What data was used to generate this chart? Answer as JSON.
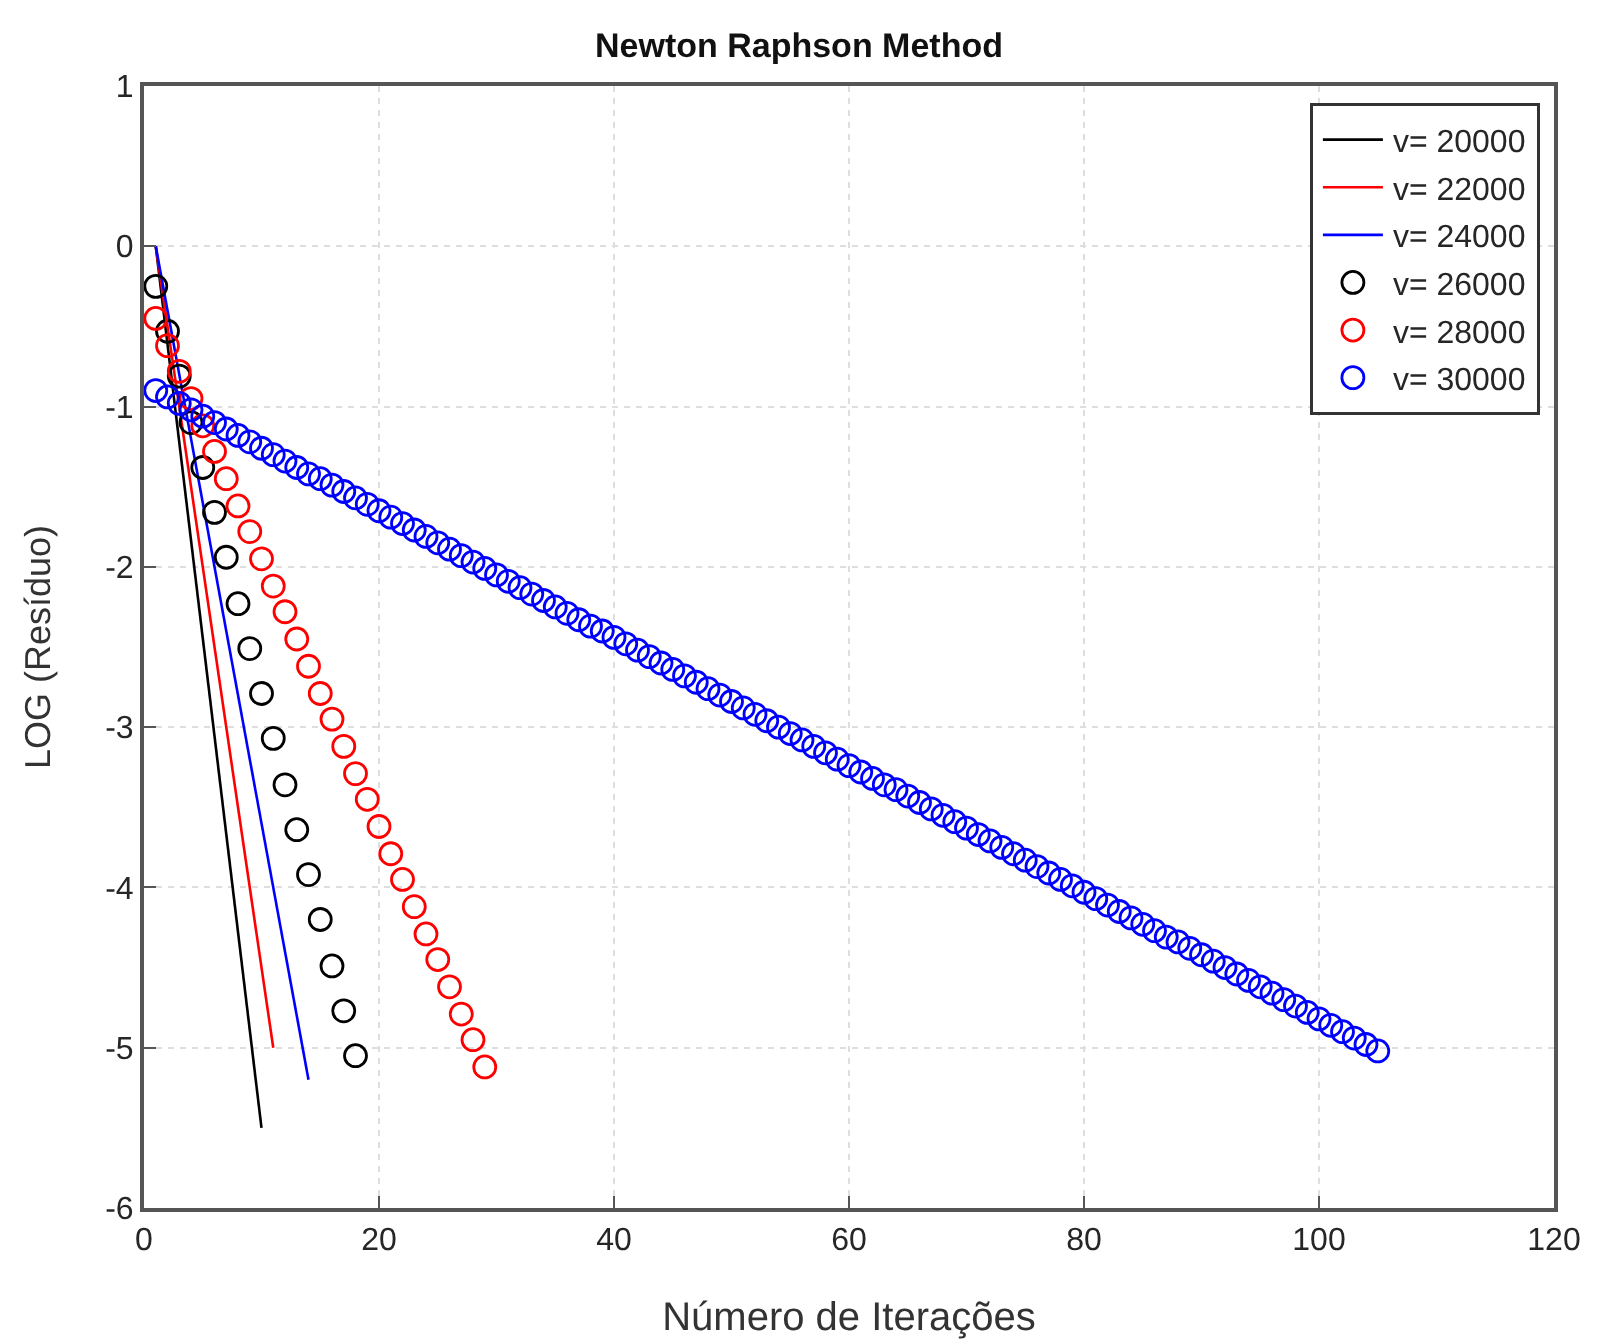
{
  "chart_data": {
    "type": "line",
    "title": "Newton Raphson Method",
    "xlabel": "Número de Iterações",
    "ylabel": "LOG (Resíduo)",
    "xlim": [
      0,
      120
    ],
    "xticks": [
      0,
      20,
      40,
      60,
      80,
      100,
      120
    ],
    "ylim": [
      -6,
      1
    ],
    "yticks": [
      -6,
      -5,
      -4,
      -3,
      -2,
      -1,
      0,
      1
    ],
    "grid": true,
    "legend": "top right",
    "series": [
      {
        "name": "v= 20000",
        "type": "line",
        "marker": "none",
        "color": "#000000",
        "x": [
          1,
          10
        ],
        "values": [
          0,
          -5.5
        ]
      },
      {
        "name": "v= 22000",
        "type": "line",
        "marker": "none",
        "color": "#ff0000",
        "x": [
          1,
          11
        ],
        "values": [
          0,
          -5.0
        ]
      },
      {
        "name": "v= 24000",
        "type": "line",
        "marker": "none",
        "color": "#0000ff",
        "x": [
          1,
          14
        ],
        "values": [
          0,
          -5.2
        ]
      },
      {
        "name": "v= 26000",
        "type": "scatter",
        "marker": "circle",
        "color": "#000000",
        "x": [
          1,
          2,
          3,
          4,
          5,
          6,
          7,
          8,
          9,
          10,
          11,
          12,
          13,
          14,
          15,
          16,
          17,
          18
        ],
        "values": [
          -0.25,
          -0.53,
          -0.81,
          -1.1,
          -1.38,
          -1.66,
          -1.94,
          -2.23,
          -2.51,
          -2.79,
          -3.07,
          -3.36,
          -3.64,
          -3.92,
          -4.2,
          -4.49,
          -4.77,
          -5.05
        ]
      },
      {
        "name": "v= 28000",
        "type": "scatter",
        "marker": "circle",
        "color": "#ff0000",
        "x": [
          1,
          2,
          3,
          4,
          5,
          6,
          7,
          8,
          9,
          10,
          11,
          12,
          13,
          14,
          15,
          16,
          17,
          18,
          19,
          20,
          21,
          22,
          23,
          24,
          25,
          26,
          27,
          28,
          29
        ],
        "values": [
          -0.45,
          -0.62,
          -0.78,
          -0.95,
          -1.12,
          -1.28,
          -1.45,
          -1.62,
          -1.78,
          -1.95,
          -2.12,
          -2.28,
          -2.45,
          -2.62,
          -2.79,
          -2.95,
          -3.12,
          -3.29,
          -3.45,
          -3.62,
          -3.79,
          -3.95,
          -4.12,
          -4.29,
          -4.45,
          -4.62,
          -4.79,
          -4.95,
          -5.12
        ]
      },
      {
        "name": "v= 30000",
        "type": "scatter",
        "marker": "circle",
        "color": "#0000ff",
        "x": [
          1,
          2,
          3,
          4,
          5,
          6,
          7,
          8,
          9,
          10,
          11,
          12,
          13,
          14,
          15,
          16,
          17,
          18,
          19,
          20,
          21,
          22,
          23,
          24,
          25,
          26,
          27,
          28,
          29,
          30,
          31,
          32,
          33,
          34,
          35,
          36,
          37,
          38,
          39,
          40,
          41,
          42,
          43,
          44,
          45,
          46,
          47,
          48,
          49,
          50,
          51,
          52,
          53,
          54,
          55,
          56,
          57,
          58,
          59,
          60,
          61,
          62,
          63,
          64,
          65,
          66,
          67,
          68,
          69,
          70,
          71,
          72,
          73,
          74,
          75,
          76,
          77,
          78,
          79,
          80,
          81,
          82,
          83,
          84,
          85,
          86,
          87,
          88,
          89,
          90,
          91,
          92,
          93,
          94,
          95,
          96,
          97,
          98,
          99,
          100,
          101,
          102,
          103,
          104,
          105
        ],
        "values": [
          -0.9,
          -0.94,
          -0.98,
          -1.02,
          -1.06,
          -1.1,
          -1.14,
          -1.18,
          -1.22,
          -1.26,
          -1.3,
          -1.34,
          -1.38,
          -1.42,
          -1.45,
          -1.49,
          -1.53,
          -1.57,
          -1.61,
          -1.65,
          -1.69,
          -1.73,
          -1.77,
          -1.81,
          -1.85,
          -1.89,
          -1.93,
          -1.97,
          -2.01,
          -2.05,
          -2.09,
          -2.13,
          -2.17,
          -2.21,
          -2.25,
          -2.29,
          -2.33,
          -2.37,
          -2.4,
          -2.44,
          -2.48,
          -2.52,
          -2.56,
          -2.6,
          -2.64,
          -2.68,
          -2.72,
          -2.76,
          -2.8,
          -2.84,
          -2.88,
          -2.92,
          -2.96,
          -3.0,
          -3.04,
          -3.08,
          -3.12,
          -3.16,
          -3.2,
          -3.24,
          -3.28,
          -3.32,
          -3.36,
          -3.39,
          -3.43,
          -3.47,
          -3.51,
          -3.55,
          -3.59,
          -3.63,
          -3.67,
          -3.71,
          -3.75,
          -3.79,
          -3.83,
          -3.87,
          -3.91,
          -3.95,
          -3.99,
          -4.03,
          -4.07,
          -4.11,
          -4.15,
          -4.19,
          -4.23,
          -4.27,
          -4.31,
          -4.34,
          -4.38,
          -4.42,
          -4.46,
          -4.5,
          -4.54,
          -4.58,
          -4.62,
          -4.66,
          -4.7,
          -4.74,
          -4.78,
          -4.82,
          -4.86,
          -4.9,
          -4.94,
          -4.98,
          -5.02
        ]
      }
    ]
  }
}
